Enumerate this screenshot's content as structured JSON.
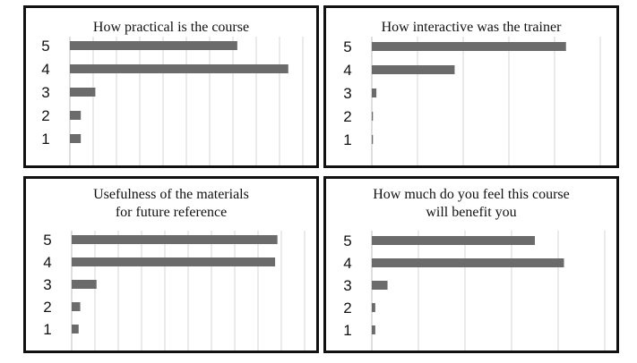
{
  "chart_data": [
    {
      "type": "bar",
      "orientation": "horizontal",
      "title": "How practical is the course",
      "categories": [
        "5",
        "4",
        "3",
        "2",
        "1"
      ],
      "values": [
        23,
        30,
        3.5,
        1.5,
        1.5
      ],
      "xlim": [
        0,
        32
      ],
      "grid": true,
      "bar_color": "#6b6b6b"
    },
    {
      "type": "bar",
      "orientation": "horizontal",
      "title": "How interactive was the trainer",
      "categories": [
        "5",
        "4",
        "3",
        "2",
        "1"
      ],
      "values": [
        34,
        14.5,
        0.8,
        0.2,
        0.2
      ],
      "xlim": [
        0,
        40
      ],
      "grid": true,
      "bar_color": "#6b6b6b"
    },
    {
      "type": "bar",
      "orientation": "horizontal",
      "title_lines": [
        "Usefulness of the materials",
        "for future reference"
      ],
      "categories": [
        "5",
        "4",
        "3",
        "2",
        "1"
      ],
      "values": [
        26.5,
        26.2,
        3.2,
        1.1,
        0.9
      ],
      "xlim": [
        0,
        30
      ],
      "grid": true,
      "bar_color": "#6b6b6b"
    },
    {
      "type": "bar",
      "orientation": "horizontal",
      "title_lines": [
        "How much do you feel this course",
        "will benefit you"
      ],
      "categories": [
        "5",
        "4",
        "3",
        "2",
        "1"
      ],
      "values": [
        28,
        33,
        2.7,
        0.6,
        0.6
      ],
      "xlim": [
        0,
        40
      ],
      "grid": true,
      "bar_color": "#6b6b6b"
    }
  ]
}
